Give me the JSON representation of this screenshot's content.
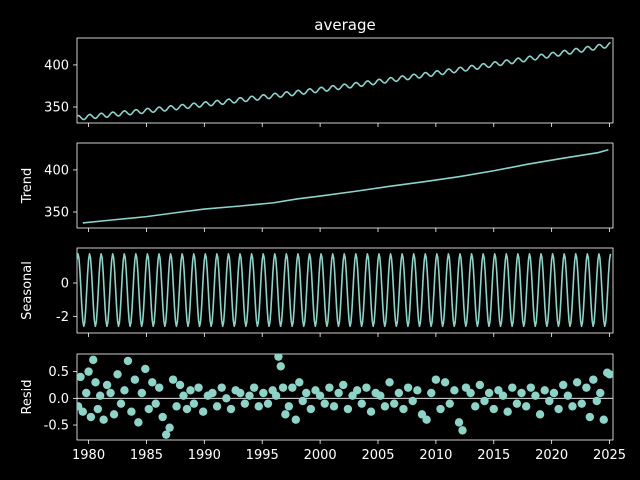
{
  "colors": {
    "background": "#000000",
    "foreground": "#ffffff",
    "series": "#8dd3c7"
  },
  "chart_data": [
    {
      "type": "line",
      "title": "average",
      "ylabel": "",
      "xlim": [
        1979,
        2025.3
      ],
      "ylim": [
        331,
        432
      ],
      "yticks": [
        350,
        400
      ],
      "show_x_tick_labels": false,
      "generator": {
        "kind": "average",
        "start_year": 1979.0,
        "end_year": 2025.1,
        "start_value": 337,
        "end_value": 424,
        "seasonal_amplitude": 2.7
      }
    },
    {
      "type": "line",
      "title": "",
      "ylabel": "Trend",
      "xlim": [
        1979,
        2025.3
      ],
      "ylim": [
        331,
        432
      ],
      "yticks": [
        350,
        400
      ],
      "show_x_tick_labels": false,
      "series": [
        {
          "x": [
            1979.5,
            1982,
            1985,
            1988,
            1990,
            1993,
            1996,
            1998,
            2000,
            2003,
            2006,
            2009,
            2012,
            2015,
            2018,
            2021,
            2024,
            2024.9
          ],
          "values": [
            337,
            340.5,
            344.5,
            350,
            353.5,
            357,
            361,
            365.5,
            369,
            374.5,
            380.5,
            386,
            392,
            399,
            407,
            414,
            420.5,
            424
          ]
        }
      ]
    },
    {
      "type": "line",
      "title": "",
      "ylabel": "Seasonal",
      "xlim": [
        1979,
        2025.3
      ],
      "ylim": [
        -3.0,
        2.1
      ],
      "yticks": [
        -2,
        0
      ],
      "show_x_tick_labels": false,
      "generator": {
        "kind": "seasonal",
        "start_year": 1979.0,
        "end_year": 2025.1,
        "amplitude_max": 1.75,
        "amplitude_min": -2.6
      }
    },
    {
      "type": "scatter",
      "title": "",
      "ylabel": "Resid",
      "xlim": [
        1979,
        2025.3
      ],
      "ylim": [
        -0.78,
        0.83
      ],
      "yticks": [
        -0.5,
        0.0,
        0.5
      ],
      "xticks": [
        1980,
        1985,
        1990,
        1995,
        2000,
        2005,
        2010,
        2015,
        2020,
        2025
      ],
      "show_x_tick_labels": true,
      "baseline": 0,
      "series": [
        {
          "x": [
            1979.1,
            1979.3,
            1979.5,
            1979.8,
            1980.0,
            1980.2,
            1980.4,
            1980.6,
            1980.8,
            1981.0,
            1981.3,
            1981.6,
            1981.9,
            1982.2,
            1982.5,
            1982.8,
            1983.1,
            1983.4,
            1983.7,
            1984.0,
            1984.3,
            1984.6,
            1984.9,
            1985.2,
            1985.5,
            1985.8,
            1986.1,
            1986.4,
            1986.7,
            1987.0,
            1987.3,
            1987.6,
            1987.9,
            1988.2,
            1988.5,
            1988.8,
            1989.1,
            1989.5,
            1989.9,
            1990.3,
            1990.7,
            1991.1,
            1991.5,
            1991.9,
            1992.3,
            1992.7,
            1993.1,
            1993.5,
            1993.9,
            1994.3,
            1994.7,
            1995.1,
            1995.5,
            1995.9,
            1996.2,
            1996.4,
            1996.6,
            1996.8,
            1997.0,
            1997.3,
            1997.6,
            1997.9,
            1998.2,
            1998.5,
            1998.8,
            1999.2,
            1999.6,
            2000.0,
            2000.4,
            2000.8,
            2001.2,
            2001.6,
            2002.0,
            2002.4,
            2002.8,
            2003.2,
            2003.6,
            2004.0,
            2004.4,
            2004.8,
            2005.2,
            2005.6,
            2006.0,
            2006.4,
            2006.8,
            2007.2,
            2007.6,
            2008.0,
            2008.4,
            2008.8,
            2009.2,
            2009.6,
            2010.0,
            2010.4,
            2010.8,
            2011.2,
            2011.6,
            2012.0,
            2012.3,
            2012.6,
            2013.0,
            2013.4,
            2013.8,
            2014.2,
            2014.6,
            2015.0,
            2015.4,
            2015.8,
            2016.2,
            2016.6,
            2017.0,
            2017.4,
            2017.8,
            2018.2,
            2018.6,
            2019.0,
            2019.4,
            2019.8,
            2020.2,
            2020.6,
            2021.0,
            2021.4,
            2021.8,
            2022.2,
            2022.6,
            2023.0,
            2023.3,
            2023.6,
            2023.9,
            2024.2,
            2024.5,
            2024.8,
            2025.0
          ],
          "values": [
            -0.15,
            0.4,
            -0.25,
            0.1,
            0.5,
            -0.35,
            0.72,
            0.3,
            -0.2,
            0.05,
            -0.4,
            0.25,
            0.1,
            -0.3,
            0.45,
            -0.1,
            0.15,
            0.7,
            -0.25,
            0.35,
            -0.45,
            0.1,
            0.55,
            -0.2,
            0.3,
            -0.1,
            0.2,
            -0.35,
            -0.68,
            -0.55,
            0.35,
            -0.15,
            0.25,
            0.05,
            -0.2,
            0.15,
            -0.1,
            0.2,
            -0.25,
            0.05,
            0.1,
            -0.15,
            0.2,
            0.0,
            -0.2,
            0.15,
            0.1,
            -0.1,
            0.05,
            0.2,
            -0.15,
            0.1,
            -0.1,
            0.15,
            0.05,
            0.78,
            0.6,
            0.2,
            -0.3,
            -0.15,
            0.2,
            -0.4,
            0.3,
            -0.05,
            0.1,
            -0.2,
            0.15,
            0.05,
            -0.1,
            0.2,
            -0.15,
            0.1,
            0.25,
            -0.2,
            0.05,
            0.15,
            -0.1,
            0.2,
            -0.25,
            0.1,
            0.05,
            -0.15,
            0.3,
            -0.1,
            0.1,
            -0.2,
            0.2,
            -0.05,
            0.15,
            -0.3,
            -0.4,
            0.1,
            0.35,
            -0.2,
            0.3,
            -0.1,
            0.15,
            -0.45,
            -0.6,
            0.2,
            0.1,
            -0.15,
            0.25,
            -0.05,
            0.1,
            -0.2,
            0.15,
            0.05,
            -0.25,
            0.2,
            -0.1,
            0.1,
            -0.15,
            0.2,
            0.05,
            -0.3,
            0.15,
            -0.05,
            0.1,
            -0.2,
            0.25,
            0.05,
            -0.15,
            0.3,
            -0.1,
            0.2,
            -0.35,
            0.35,
            -0.05,
            0.1,
            -0.4,
            0.48,
            0.45
          ]
        }
      ]
    }
  ]
}
